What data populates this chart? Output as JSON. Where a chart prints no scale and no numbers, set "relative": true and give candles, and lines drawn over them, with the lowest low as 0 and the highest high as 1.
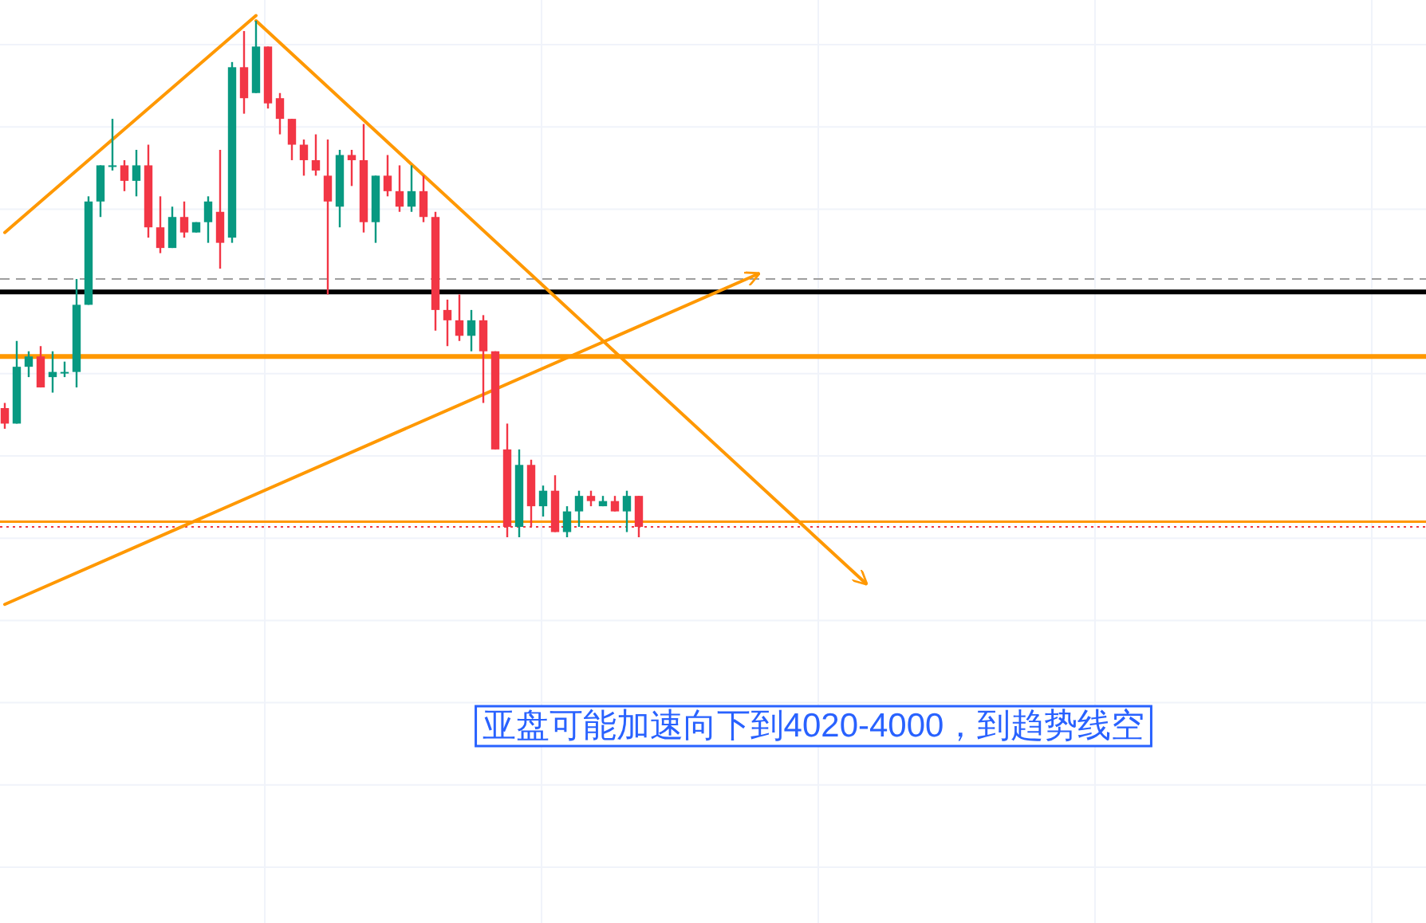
{
  "chart_data": {
    "type": "candlestick",
    "relative": true,
    "grid": true,
    "categories": [
      null,
      null,
      null,
      null,
      null,
      null,
      null,
      null,
      null,
      null,
      null,
      null,
      null,
      null,
      null,
      null,
      null,
      null,
      null,
      null,
      null,
      null,
      null,
      null,
      null,
      null,
      null,
      null,
      null,
      null,
      null,
      null,
      null,
      null,
      null,
      null,
      null,
      null,
      null,
      null,
      null,
      null,
      null,
      null,
      null,
      null,
      null,
      null,
      null,
      null,
      null,
      null,
      null,
      null,
      null,
      null,
      null,
      null,
      null,
      null,
      null,
      null,
      null,
      null,
      null,
      null,
      null,
      null,
      null,
      null,
      null,
      null,
      null,
      null,
      null,
      null,
      null,
      null,
      null,
      null,
      null,
      null,
      null,
      null,
      null,
      null,
      null,
      null,
      null,
      null,
      null,
      null,
      null,
      null,
      null,
      null,
      null,
      null,
      null,
      null,
      null,
      null,
      null,
      null,
      null,
      null,
      null,
      null,
      null,
      null,
      null,
      null,
      null,
      null,
      null,
      null,
      null,
      null,
      null
    ],
    "ohlc": [
      [
        0.25,
        0.26,
        0.21,
        0.22
      ],
      [
        0.22,
        0.38,
        0.22,
        0.33
      ],
      [
        0.33,
        0.36,
        0.31,
        0.35
      ],
      [
        0.35,
        0.37,
        0.29,
        0.29
      ],
      [
        0.31,
        0.36,
        0.28,
        0.32
      ],
      [
        0.32,
        0.34,
        0.31,
        0.32
      ],
      [
        0.32,
        0.5,
        0.29,
        0.45
      ],
      [
        0.45,
        0.66,
        0.45,
        0.65
      ],
      [
        0.65,
        0.72,
        0.62,
        0.72
      ],
      [
        0.72,
        0.81,
        0.71,
        0.72
      ],
      [
        0.72,
        0.73,
        0.67,
        0.69
      ],
      [
        0.69,
        0.75,
        0.66,
        0.72
      ],
      [
        0.72,
        0.76,
        0.58,
        0.6
      ],
      [
        0.6,
        0.66,
        0.55,
        0.56
      ],
      [
        0.56,
        0.64,
        0.56,
        0.62
      ],
      [
        0.62,
        0.65,
        0.58,
        0.59
      ],
      [
        0.59,
        0.61,
        0.59,
        0.61
      ],
      [
        0.61,
        0.66,
        0.57,
        0.65
      ],
      [
        0.63,
        0.75,
        0.52,
        0.57
      ],
      [
        0.58,
        0.92,
        0.57,
        0.91
      ],
      [
        0.91,
        0.98,
        0.82,
        0.85
      ],
      [
        0.86,
        1.0,
        0.86,
        0.95
      ],
      [
        0.95,
        0.95,
        0.83,
        0.84
      ],
      [
        0.85,
        0.86,
        0.78,
        0.81
      ],
      [
        0.81,
        0.81,
        0.73,
        0.76
      ],
      [
        0.76,
        0.77,
        0.7,
        0.73
      ],
      [
        0.73,
        0.78,
        0.7,
        0.71
      ],
      [
        0.7,
        0.77,
        0.47,
        0.65
      ],
      [
        0.64,
        0.75,
        0.6,
        0.74
      ],
      [
        0.74,
        0.75,
        0.68,
        0.73
      ],
      [
        0.73,
        0.8,
        0.59,
        0.61
      ],
      [
        0.61,
        0.7,
        0.57,
        0.7
      ],
      [
        0.7,
        0.74,
        0.66,
        0.67
      ],
      [
        0.67,
        0.72,
        0.63,
        0.64
      ],
      [
        0.64,
        0.72,
        0.63,
        0.67
      ],
      [
        0.67,
        0.7,
        0.61,
        0.62
      ],
      [
        0.62,
        0.63,
        0.4,
        0.44
      ],
      [
        0.44,
        0.46,
        0.37,
        0.42
      ],
      [
        0.42,
        0.47,
        0.38,
        0.39
      ],
      [
        0.39,
        0.44,
        0.36,
        0.42
      ],
      [
        0.42,
        0.43,
        0.26,
        0.36
      ],
      [
        0.36,
        0.36,
        0.17,
        0.17
      ],
      [
        0.17,
        0.22,
        0.0,
        0.02
      ],
      [
        0.02,
        0.17,
        0.0,
        0.14
      ],
      [
        0.14,
        0.15,
        0.02,
        0.06
      ],
      [
        0.06,
        0.1,
        0.04,
        0.09
      ],
      [
        0.09,
        0.12,
        0.01,
        0.01
      ],
      [
        0.01,
        0.06,
        0.0,
        0.05
      ],
      [
        0.05,
        0.09,
        0.02,
        0.08
      ],
      [
        0.08,
        0.09,
        0.06,
        0.07
      ],
      [
        0.06,
        0.08,
        0.06,
        0.07
      ],
      [
        0.07,
        0.08,
        0.05,
        0.05
      ],
      [
        0.05,
        0.09,
        0.01,
        0.08
      ],
      [
        0.08,
        0.08,
        0.0,
        0.02
      ],
      null,
      null,
      null,
      null,
      null,
      null,
      null,
      null,
      null,
      null,
      null,
      null,
      null,
      null,
      null,
      null,
      null,
      null,
      null,
      null,
      null,
      null,
      null,
      null,
      null,
      null,
      null,
      null,
      null,
      null,
      null,
      null,
      null,
      null,
      null,
      null,
      null,
      null,
      null,
      null,
      null,
      null,
      null,
      null,
      null,
      null,
      null,
      null,
      null,
      null,
      null,
      null,
      null,
      null,
      null,
      null,
      null,
      null,
      null,
      null,
      null,
      null,
      null,
      null,
      null
    ],
    "colors": [
      "#f23645",
      "#089981",
      "#089981",
      "#f23645",
      "#089981",
      "#089981",
      "#089981",
      "#089981",
      "#089981",
      "#089981",
      "#f23645",
      "#089981",
      "#f23645",
      "#f23645",
      "#089981",
      "#f23645",
      "#089981",
      "#089981",
      "#f23645",
      "#089981",
      "#f23645",
      "#089981",
      "#f23645",
      "#f23645",
      "#f23645",
      "#f23645",
      "#f23645",
      "#f23645",
      "#089981",
      "#f23645",
      "#f23645",
      "#089981",
      "#f23645",
      "#f23645",
      "#089981",
      "#f23645",
      "#f23645",
      "#f23645",
      "#f23645",
      "#089981",
      "#f23645",
      "#f23645",
      "#f23645",
      "#089981",
      "#f23645",
      "#089981",
      "#f23645",
      "#089981",
      "#089981",
      "#f23645",
      "#089981",
      "#f23645",
      "#089981",
      "#f23645",
      null,
      null,
      null,
      null,
      null,
      null,
      null,
      null,
      null,
      null,
      null,
      null,
      null,
      null,
      null,
      null,
      null,
      null,
      null,
      null,
      null,
      null,
      null,
      null,
      null,
      null,
      null,
      null,
      null,
      null,
      null,
      null,
      null,
      null,
      null,
      null,
      null,
      null,
      null,
      null,
      null,
      null,
      null,
      null,
      null,
      null,
      null,
      null,
      null,
      null,
      null,
      null,
      null,
      null,
      null,
      null,
      null,
      null,
      null,
      null,
      null,
      null,
      null,
      null,
      null
    ],
    "series": [
      {
        "type": "line",
        "color": "#ff9800",
        "values": [
          0.59,
          null,
          null,
          null,
          null,
          null,
          null,
          null,
          null,
          null,
          null,
          null,
          null,
          null,
          null,
          null,
          null,
          null,
          null,
          null,
          null,
          1.01,
          null,
          null,
          null,
          null,
          null,
          null,
          null,
          null,
          null,
          null,
          null,
          null,
          null,
          null,
          null,
          null,
          null,
          null,
          null,
          null,
          null,
          null,
          null,
          null,
          null,
          null,
          null,
          null,
          null,
          null,
          null,
          null,
          null,
          null,
          null,
          null,
          null,
          null,
          null,
          null,
          null,
          null,
          null,
          null,
          null,
          null,
          null,
          null,
          null,
          null,
          null,
          null,
          null,
          null,
          null,
          null,
          null,
          null,
          null,
          null,
          null,
          null,
          null,
          null,
          null,
          null,
          null,
          null,
          null,
          null,
          null,
          null,
          null,
          null,
          null,
          null,
          null,
          null,
          null,
          null,
          null,
          null,
          null,
          null,
          null,
          null,
          null,
          null,
          null,
          null,
          null,
          null,
          null,
          null,
          null,
          null,
          null
        ]
      },
      {
        "type": "line",
        "color": "#ff9800",
        "values": [
          null,
          null,
          null,
          null,
          null,
          null,
          null,
          null,
          null,
          null,
          null,
          null,
          null,
          null,
          null,
          null,
          null,
          null,
          null,
          null,
          null,
          1.0,
          null,
          null,
          null,
          null,
          null,
          null,
          null,
          null,
          null,
          null,
          null,
          null,
          null,
          null,
          null,
          null,
          null,
          null,
          null,
          null,
          null,
          null,
          null,
          null,
          null,
          null,
          null,
          null,
          null,
          null,
          null,
          null,
          null,
          null,
          null,
          null,
          null,
          null,
          null,
          null,
          null,
          null,
          null,
          null,
          null,
          null,
          null,
          null,
          null,
          null,
          -0.09,
          null,
          null,
          null,
          null,
          null,
          null,
          null,
          null,
          null,
          null,
          null,
          null,
          null,
          null,
          null,
          null,
          null,
          null,
          null,
          null,
          null,
          null,
          null,
          null,
          null,
          null,
          null,
          null,
          null,
          null,
          null,
          null,
          null,
          null,
          null,
          null,
          null,
          null,
          null,
          null,
          null,
          null,
          null,
          null,
          null,
          null
        ]
      },
      {
        "type": "line",
        "color": "#ff9800",
        "values": [
          -0.13,
          null,
          null,
          null,
          null,
          null,
          null,
          null,
          null,
          null,
          null,
          null,
          null,
          null,
          null,
          null,
          null,
          null,
          null,
          null,
          null,
          null,
          null,
          null,
          null,
          null,
          null,
          null,
          null,
          null,
          null,
          null,
          null,
          null,
          null,
          null,
          null,
          null,
          null,
          null,
          null,
          null,
          null,
          null,
          null,
          null,
          null,
          null,
          null,
          null,
          null,
          null,
          null,
          null,
          null,
          null,
          null,
          null,
          null,
          null,
          null,
          null,
          null,
          0.51,
          null,
          null,
          null,
          null,
          null,
          null,
          null,
          null,
          null,
          null,
          null,
          null,
          null,
          null,
          null,
          null,
          null,
          null,
          null,
          null,
          null,
          null,
          null,
          null,
          null,
          null,
          null,
          null,
          null,
          null,
          null,
          null,
          null,
          null,
          null,
          null,
          null,
          null,
          null,
          null,
          null,
          null,
          null,
          null,
          null,
          null,
          null,
          null,
          null,
          null,
          null,
          null,
          null,
          null,
          null
        ]
      }
    ],
    "ref_lines": [
      {
        "axis": "y",
        "value": 0.5,
        "color": "#9e9e9e",
        "line_style": "dashed"
      },
      {
        "axis": "y",
        "value": 0.475,
        "color": "#000000",
        "line_style": "solid"
      },
      {
        "axis": "y",
        "value": 0.35,
        "color": "#ff9800",
        "line_style": "solid"
      },
      {
        "axis": "y",
        "value": 0.03,
        "color": "#ff9800",
        "line_style": "solid"
      },
      {
        "axis": "y",
        "value": 0.02,
        "color": "#f23645",
        "line_style": "dotted"
      }
    ],
    "annotations": [
      "亚盘可能加速向下到4020-4000，到趋势线空"
    ]
  }
}
